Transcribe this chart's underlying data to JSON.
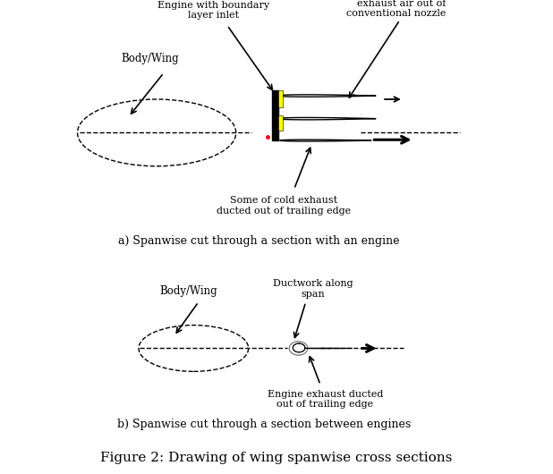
{
  "title": "Figure 2: Drawing of wing spanwise cross sections",
  "label_a": "a) Spanwise cut through a section with an engine",
  "label_b": "b) Spanwise cut through a section between engines",
  "annotations_a": {
    "engine_label": "Engine with boundary\nlayer inlet",
    "nozzle_label": "Remaining cold air and hot\nexhaust air out of\nconventional nozzle",
    "cold_exhaust_label": "Some of cold exhaust\nducted out of trailing edge",
    "body_wing_label": "Body/Wing"
  },
  "annotations_b": {
    "ductwork_label": "Ductwork along\nspan",
    "exhaust_label": "Engine exhaust ducted\nout of trailing edge",
    "body_wing_label": "Body/Wing"
  },
  "bg_color": "#ffffff",
  "text_color": "#000000",
  "line_color": "#000000",
  "yellow_color": "#ffff00",
  "red_color": "#ff0000"
}
